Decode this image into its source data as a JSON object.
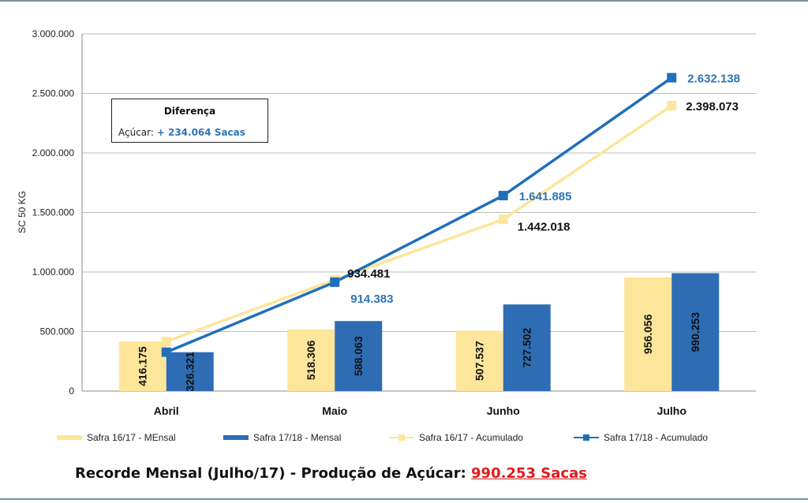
{
  "chart_data": {
    "type": "bar",
    "categories": [
      "Abril",
      "Maio",
      "Junho",
      "Julho"
    ],
    "ylabel": "SC 50 KG",
    "ylim": [
      0,
      3000000
    ],
    "yticks": [
      "0",
      "500.000",
      "1.000.000",
      "1.500.000",
      "2.000.000",
      "2.500.000",
      "3.000.000"
    ],
    "grid": true,
    "legend_position": "bottom",
    "series": [
      {
        "name": "Safra 16/17 - MEnsal",
        "kind": "bar",
        "color": "#fde59a",
        "values": [
          416175,
          518306,
          507537,
          956056
        ],
        "labels": [
          "416.175",
          "518.306",
          "507.537",
          "956.056"
        ]
      },
      {
        "name": "Safra 17/18 - Mensal",
        "kind": "bar",
        "color": "#2e6db4",
        "values": [
          326321,
          588063,
          727502,
          990253
        ],
        "labels": [
          "326.321",
          "588.063",
          "727.502",
          "990.253"
        ]
      },
      {
        "name": "Safra 16/17 - Acumulado",
        "kind": "line",
        "color": "#fde59a",
        "values": [
          416175,
          934481,
          1442018,
          2398073
        ],
        "labels": [
          "",
          "934.481",
          "1.442.018",
          "2.398.073"
        ]
      },
      {
        "name": "Safra 17/18 - Acumulado",
        "kind": "line",
        "color": "#1f6fba",
        "values": [
          326321,
          914383,
          1641885,
          2632138
        ],
        "labels": [
          "",
          "914.383",
          "1.641.885",
          "2.632.138"
        ]
      }
    ]
  },
  "diff_box": {
    "title": "Diferença",
    "label": "Açúcar: ",
    "value": "+ 234.064 Sacas"
  },
  "footer": {
    "text": "Recorde Mensal (Julho/17) - Produção de Açúcar: ",
    "value": "990.253 Sacas"
  }
}
